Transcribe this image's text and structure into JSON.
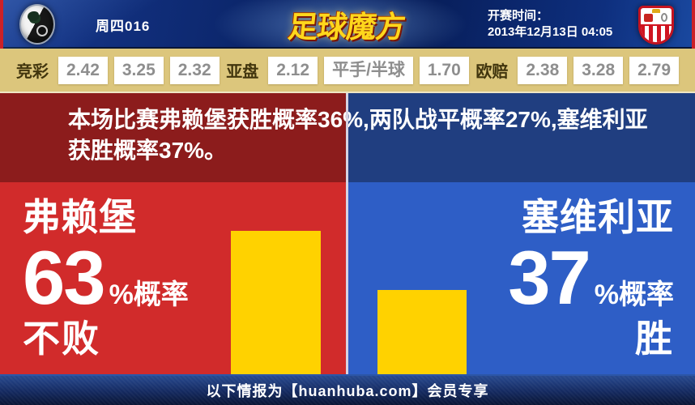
{
  "header": {
    "match_code": "周四016",
    "brand_text": "足球魔方",
    "kickoff_label": "开赛时间：",
    "kickoff_time": "2013年12月13日 04:05"
  },
  "odds_bar": {
    "groups": [
      {
        "label": "竞彩",
        "values": [
          "2.42",
          "3.25",
          "2.32"
        ]
      },
      {
        "label": "亚盘",
        "values": [
          "2.12",
          "平手/半球",
          "1.70"
        ]
      },
      {
        "label": "欧赔",
        "values": [
          "2.38",
          "3.28",
          "2.79"
        ]
      }
    ]
  },
  "summary": {
    "text": "本场比赛弗赖堡获胜概率36%,两队战平概率27%,塞维利亚获胜概率37%。"
  },
  "home_panel": {
    "team": "弗赖堡",
    "percent": "63",
    "percent_suffix": "%概率",
    "outcome": "不败"
  },
  "away_panel": {
    "team": "塞维利亚",
    "percent": "37",
    "percent_suffix": "%概率",
    "outcome": "胜"
  },
  "footer": {
    "text": "以下情报为【huanhuba.com】会员专享"
  },
  "colors": {
    "header_navy": "#0b2569",
    "accent_red_strip": "#cc2127",
    "odds_bar_tan": "#dcc67c",
    "odds_value_gray": "#8e8e8e",
    "summary_red": "#8c1c1c",
    "summary_blue": "#203e80",
    "panel_red": "#d12b2b",
    "panel_blue": "#2e5ec6",
    "bar_yellow": "#ffd200",
    "brand_gold": "#ffd71c",
    "footer_navy": "#14295f"
  },
  "chart_data": {
    "type": "bar",
    "categories": [
      "弗赖堡 不败",
      "塞维利亚 胜"
    ],
    "values": [
      63,
      37
    ],
    "unit": "%",
    "bar_color": "#ffd200",
    "ylim": [
      0,
      100
    ],
    "annotations": [
      "弗赖堡 63%概率 不败",
      "塞维利亚 37%概率 胜"
    ],
    "legend_position": "none",
    "grid": false
  }
}
